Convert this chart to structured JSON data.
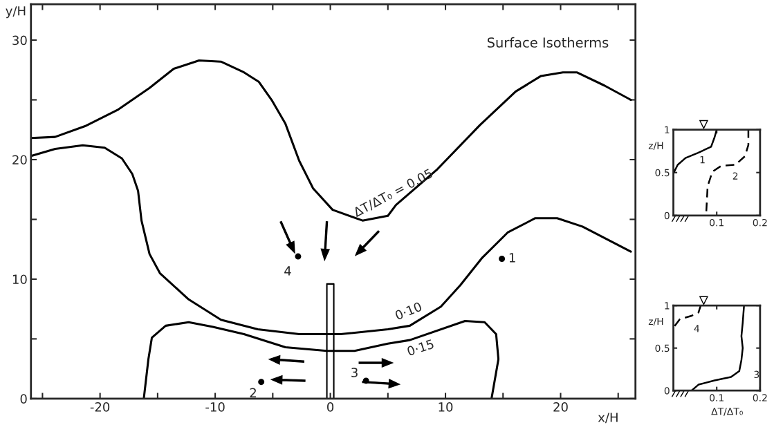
{
  "chart_data": [
    {
      "type": "line",
      "title": "Surface Isotherms",
      "xlabel": "x/H",
      "ylabel": "y/H",
      "xlim": [
        -26,
        26.5
      ],
      "ylim": [
        0,
        33
      ],
      "xticks": [
        {
          "value": -25,
          "label": null
        },
        -20,
        {
          "value": -15,
          "label": null
        },
        -10,
        {
          "value": -5,
          "label": null
        },
        0,
        {
          "value": 5,
          "label": null
        },
        10,
        {
          "value": 15,
          "label": null
        },
        20,
        {
          "value": 25,
          "label": null
        }
      ],
      "yticks": [
        0,
        {
          "value": 5,
          "label": null
        },
        10,
        {
          "value": 15,
          "label": null
        },
        20,
        {
          "value": 25,
          "label": null
        },
        30
      ],
      "grid": false,
      "legend": false,
      "line_style": "solid",
      "series": [
        {
          "color": "#000000",
          "x": [
            -26,
            -23.9,
            -21.3,
            -18.4,
            -15.7,
            -13.6,
            -11.4,
            -9.5,
            -7.5,
            -6.2,
            -5.1,
            -3.9,
            -2.7,
            -1.5,
            0.2,
            2.8,
            5.0,
            5.7,
            9.3,
            13.0,
            16.1,
            18.3,
            20.2,
            21.4,
            23.8,
            26.1
          ],
          "values": [
            21.8,
            21.9,
            22.8,
            24.2,
            26.0,
            27.6,
            28.3,
            28.2,
            27.3,
            26.5,
            25.0,
            23.0,
            19.9,
            17.6,
            15.8,
            14.9,
            15.3,
            16.2,
            19.2,
            22.9,
            25.7,
            27.0,
            27.3,
            27.3,
            26.2,
            25.0
          ]
        },
        {
          "color": "#000000",
          "x": [
            -26,
            -23.9,
            -21.5,
            -19.6,
            -18.1,
            -17.2,
            -16.7,
            -16.4,
            -15.7,
            -14.8,
            -12.3,
            -9.5,
            -6.3,
            -2.7,
            0.9,
            5.0,
            6.9,
            9.6,
            11.3,
            13.2,
            15.4,
            17.8,
            19.7,
            21.9,
            26.1
          ],
          "values": [
            20.3,
            20.9,
            21.2,
            21.0,
            20.1,
            18.8,
            17.4,
            14.9,
            12.1,
            10.5,
            8.3,
            6.6,
            5.8,
            5.4,
            5.4,
            5.8,
            6.1,
            7.7,
            9.5,
            11.8,
            13.9,
            15.1,
            15.1,
            14.4,
            12.3
          ]
        },
        {
          "color": "#000000",
          "x": [
            -16.2,
            -15.8,
            -15.5,
            -14.3,
            -12.3,
            -10.2,
            -7.5,
            -3.9,
            -0.3,
            2.1,
            5.0,
            6.9,
            11.7,
            13.4,
            14.4,
            14.6,
            14.0
          ],
          "values": [
            0,
            3.3,
            5.1,
            6.1,
            6.4,
            6.0,
            5.4,
            4.3,
            4.0,
            4.0,
            4.6,
            4.9,
            6.5,
            6.4,
            5.4,
            3.3,
            0
          ]
        },
        {
          "type": "scatter",
          "name": "1",
          "marker": "circle",
          "color": "#000000",
          "x": [
            14.9
          ],
          "values": [
            11.7
          ]
        },
        {
          "type": "scatter",
          "name": "2",
          "marker": "circle",
          "color": "#000000",
          "x": [
            -6.0
          ],
          "values": [
            1.4
          ]
        },
        {
          "type": "scatter",
          "name": "3",
          "marker": "circle",
          "color": "#000000",
          "x": [
            3.1
          ],
          "values": [
            1.5
          ]
        },
        {
          "type": "scatter",
          "name": "4",
          "marker": "circle",
          "color": "#000000",
          "x": [
            -2.8
          ],
          "values": [
            11.9
          ]
        }
      ],
      "annotations": [
        "ΔT/ΔT₀ = 0.05",
        "0·10",
        "0·15"
      ]
    },
    {
      "type": "line",
      "ylabel": "z/H",
      "xlim": [
        0,
        0.2
      ],
      "ylim": [
        0,
        1
      ],
      "xticks": [
        {
          "value": 0.1,
          "label": "0.1"
        },
        {
          "value": 0.2,
          "label": "0.2"
        }
      ],
      "yticks": [
        0,
        0.5,
        1
      ],
      "grid": false,
      "legend": false,
      "series": [
        {
          "name": "1",
          "color": "#000000",
          "line_style": "solid",
          "x": [
            0,
            0.01,
            0.028,
            0.057,
            0.087,
            0.095,
            0.1
          ],
          "values": [
            0.49,
            0.59,
            0.67,
            0.73,
            0.8,
            0.91,
            1.0
          ]
        },
        {
          "name": "2",
          "color": "#000000",
          "line_style": "dashed",
          "x": [
            0.076,
            0.079,
            0.09,
            0.111,
            0.143,
            0.165,
            0.173,
            0.173
          ],
          "values": [
            0.05,
            0.34,
            0.51,
            0.58,
            0.59,
            0.69,
            0.82,
            1.0
          ]
        }
      ]
    },
    {
      "type": "line",
      "ylabel": "z/H",
      "xlabel": "ΔT/ΔT₀",
      "xlim": [
        0,
        0.2
      ],
      "ylim": [
        0,
        1
      ],
      "xticks": [
        {
          "value": 0.1,
          "label": "0.1"
        },
        {
          "value": 0.2,
          "label": "0.2"
        }
      ],
      "yticks": [
        0,
        0.5,
        1
      ],
      "grid": false,
      "legend": false,
      "series": [
        {
          "name": "3",
          "color": "#000000",
          "line_style": "solid",
          "x": [
            0.042,
            0.058,
            0.095,
            0.133,
            0.152,
            0.157,
            0.16,
            0.157,
            0.16,
            0.163
          ],
          "values": [
            0,
            0.07,
            0.12,
            0.16,
            0.23,
            0.36,
            0.5,
            0.64,
            0.8,
            1.0
          ]
        },
        {
          "name": "4",
          "color": "#000000",
          "line_style": "dashed",
          "x": [
            0.003,
            0.015,
            0.042,
            0.058,
            0.063
          ],
          "values": [
            0.76,
            0.84,
            0.88,
            0.92,
            1.0
          ]
        }
      ]
    }
  ]
}
